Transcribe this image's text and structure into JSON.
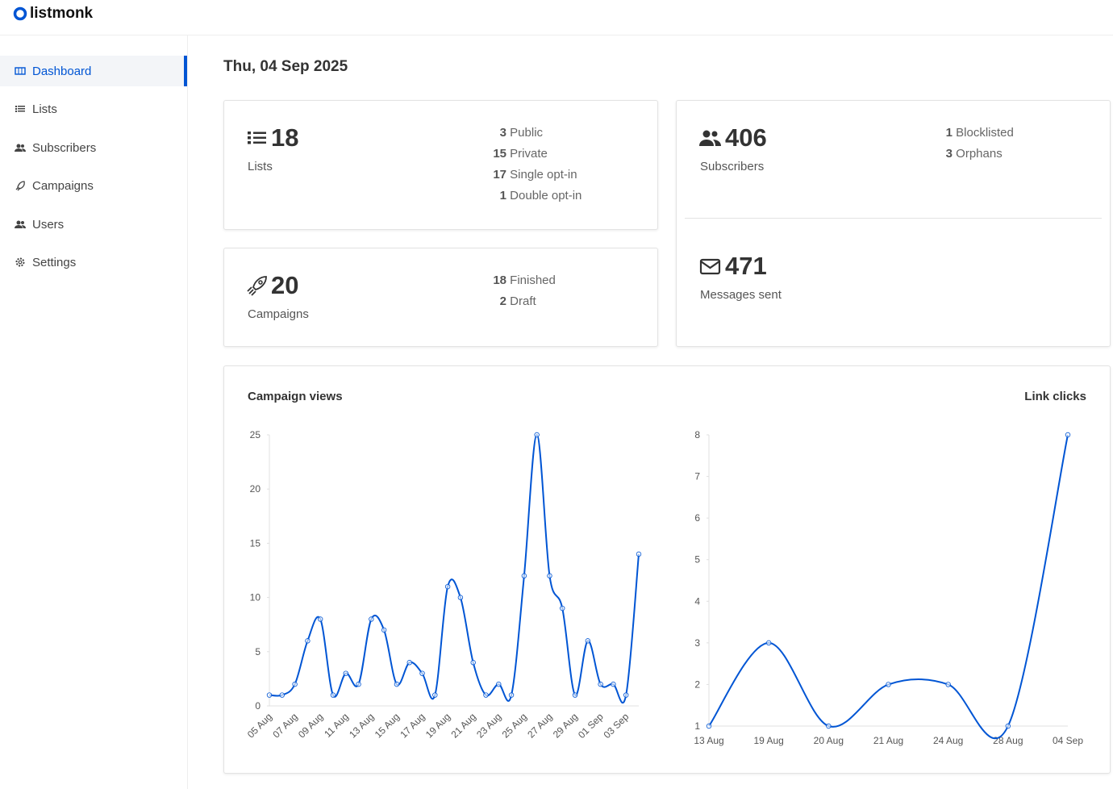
{
  "brand": "listmonk",
  "nav": [
    "Dashboard",
    "Lists",
    "Subscribers",
    "Campaigns",
    "Users",
    "Settings"
  ],
  "date": "Thu, 04 Sep 2025",
  "cards": {
    "lists": {
      "count": 18,
      "label": "Lists",
      "details": [
        {
          "count": 3,
          "label": "Public"
        },
        {
          "count": 15,
          "label": "Private"
        },
        {
          "count": 17,
          "label": "Single opt-in"
        },
        {
          "count": 1,
          "label": "Double opt-in"
        }
      ]
    },
    "campaigns": {
      "count": 20,
      "label": "Campaigns",
      "details": [
        {
          "count": 18,
          "label": "Finished"
        },
        {
          "count": 2,
          "label": "Draft"
        }
      ]
    },
    "subscribers": {
      "count": 406,
      "label": "Subscribers",
      "details": [
        {
          "count": 1,
          "label": "Blocklisted"
        },
        {
          "count": 3,
          "label": "Orphans"
        }
      ]
    },
    "messages": {
      "count": 471,
      "label": "Messages sent"
    }
  },
  "chart_data": [
    {
      "type": "line",
      "title": "Campaign views",
      "color": "#0055d4",
      "categories": [
        "05 Aug",
        null,
        "07 Aug",
        null,
        "09 Aug",
        null,
        "11 Aug",
        null,
        "13 Aug",
        null,
        "15 Aug",
        null,
        "17 Aug",
        null,
        "19 Aug",
        null,
        "21 Aug",
        null,
        "23 Aug",
        null,
        "25 Aug",
        null,
        "27 Aug",
        null,
        "29 Aug",
        null,
        "01 Sep",
        null,
        "03 Sep",
        null
      ],
      "values": [
        1,
        1,
        2,
        6,
        8,
        1,
        3,
        2,
        8,
        7,
        2,
        4,
        3,
        1,
        11,
        10,
        4,
        1,
        2,
        1,
        12,
        25,
        12,
        9,
        1,
        6,
        2,
        2,
        1,
        14
      ],
      "ylim": [
        0,
        25
      ],
      "yticks": [
        0,
        5,
        10,
        15,
        20,
        25
      ]
    },
    {
      "type": "line",
      "title": "Link clicks",
      "color": "#0055d4",
      "categories": [
        "13 Aug",
        "19 Aug",
        "20 Aug",
        "21 Aug",
        "24 Aug",
        "28 Aug",
        "04 Sep"
      ],
      "values": [
        1,
        3,
        1,
        2,
        2,
        1,
        8
      ],
      "ylim": [
        1,
        8
      ],
      "yticks": [
        1,
        2,
        3,
        4,
        5,
        6,
        7,
        8
      ]
    }
  ]
}
